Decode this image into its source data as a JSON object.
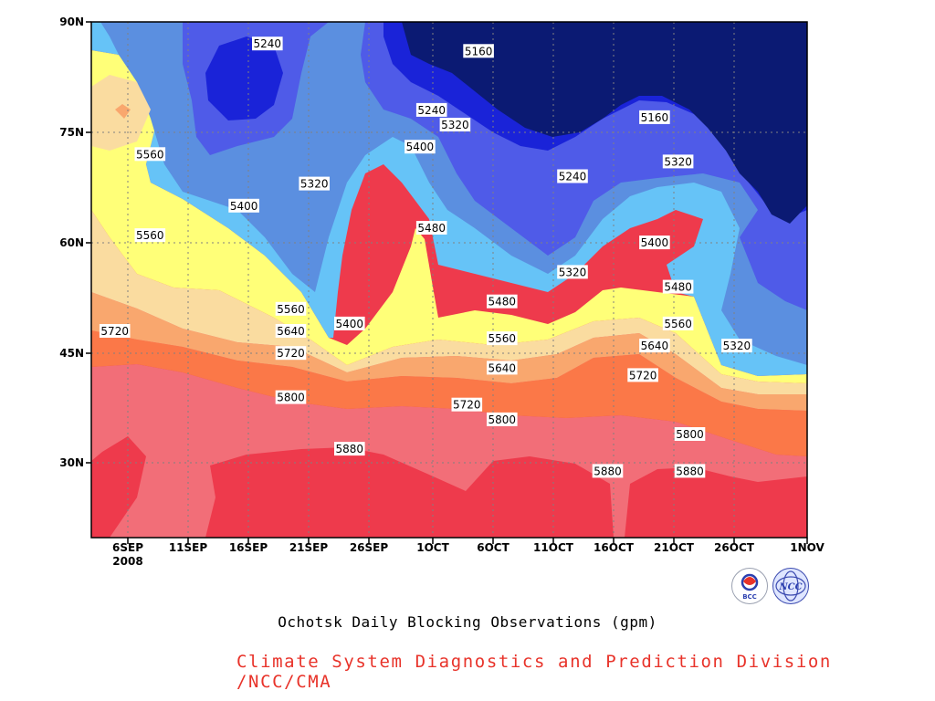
{
  "chart_data": {
    "type": "heatmap",
    "title": "Ochotsk Daily Blocking Observations (gpm)",
    "x_ticks": [
      {
        "label": "6SEP",
        "sub": "2008"
      },
      {
        "label": "11SEP"
      },
      {
        "label": "16SEP"
      },
      {
        "label": "21SEP"
      },
      {
        "label": "26SEP"
      },
      {
        "label": "1OCT"
      },
      {
        "label": "6OCT"
      },
      {
        "label": "11OCT"
      },
      {
        "label": "16OCT"
      },
      {
        "label": "21OCT"
      },
      {
        "label": "26OCT"
      },
      {
        "label": "1NOV"
      }
    ],
    "y_ticks": [
      "30N",
      "45N",
      "60N",
      "75N",
      "90N"
    ],
    "levels": [
      5160,
      5240,
      5320,
      5400,
      5480,
      5560,
      5640,
      5720,
      5800,
      5880
    ],
    "bands": [
      {
        "range": "<5160",
        "color": "#0b1a73"
      },
      {
        "range": "5160-5240",
        "color": "#1a23d8"
      },
      {
        "range": "5240-5320",
        "color": "#4f5be8"
      },
      {
        "range": "5320-5400",
        "color": "#5b8fe0"
      },
      {
        "range": "5400-5480",
        "color": "#66c3f7"
      },
      {
        "range": "5480-5560",
        "color": "#ffff78"
      },
      {
        "range": "5560-5640",
        "color": "#fadca0"
      },
      {
        "range": "5640-5720",
        "color": "#f9a76e"
      },
      {
        "range": "5720-5800",
        "color": "#fb7848"
      },
      {
        "range": "5800-5880",
        "color": "#f26e78"
      },
      {
        "range": ">5880",
        "color": "#ee3a4c"
      }
    ],
    "contour_labels": [
      {
        "value": "5160",
        "x": "4OCT",
        "y": "86N"
      },
      {
        "value": "5160",
        "x": "19OCT",
        "y": "77N"
      },
      {
        "value": "5240",
        "x": "16SEP",
        "y": "87N"
      },
      {
        "value": "5240",
        "x": "30SEP",
        "y": "78N"
      },
      {
        "value": "5240",
        "x": "12OCT",
        "y": "69N"
      },
      {
        "value": "5320",
        "x": "2OCT",
        "y": "76N"
      },
      {
        "value": "5320",
        "x": "20SEP",
        "y": "68N"
      },
      {
        "value": "5320",
        "x": "12OCT",
        "y": "56N"
      },
      {
        "value": "5320",
        "x": "21OCT",
        "y": "71N"
      },
      {
        "value": "5320",
        "x": "26OCT",
        "y": "46N"
      },
      {
        "value": "5400",
        "x": "14SEP",
        "y": "65N"
      },
      {
        "value": "5400",
        "x": "29SEP",
        "y": "73N"
      },
      {
        "value": "5400",
        "x": "23SEP",
        "y": "49N"
      },
      {
        "value": "5400",
        "x": "19OCT",
        "y": "60N"
      },
      {
        "value": "5480",
        "x": "30SEP",
        "y": "62N"
      },
      {
        "value": "5480",
        "x": "6OCT",
        "y": "52N"
      },
      {
        "value": "5480",
        "x": "21OCT",
        "y": "54N"
      },
      {
        "value": "5560",
        "x": "6SEP",
        "y": "72N"
      },
      {
        "value": "5560",
        "x": "6SEP",
        "y": "61N"
      },
      {
        "value": "5560",
        "x": "18SEP",
        "y": "51N"
      },
      {
        "value": "5560",
        "x": "6OCT",
        "y": "47N"
      },
      {
        "value": "5560",
        "x": "21OCT",
        "y": "49N"
      },
      {
        "value": "5640",
        "x": "18SEP",
        "y": "48N"
      },
      {
        "value": "5640",
        "x": "6OCT",
        "y": "43N"
      },
      {
        "value": "5640",
        "x": "19OCT",
        "y": "46N"
      },
      {
        "value": "5720",
        "x": "3SEP",
        "y": "48N"
      },
      {
        "value": "5720",
        "x": "18SEP",
        "y": "45N"
      },
      {
        "value": "5720",
        "x": "3OCT",
        "y": "38N"
      },
      {
        "value": "5720",
        "x": "18OCT",
        "y": "42N"
      },
      {
        "value": "5800",
        "x": "18SEP",
        "y": "39N"
      },
      {
        "value": "5800",
        "x": "6OCT",
        "y": "36N"
      },
      {
        "value": "5800",
        "x": "22OCT",
        "y": "34N"
      },
      {
        "value": "5880",
        "x": "23SEP",
        "y": "32N"
      },
      {
        "value": "5880",
        "x": "15OCT",
        "y": "29N"
      },
      {
        "value": "5880",
        "x": "22OCT",
        "y": "29N"
      }
    ]
  },
  "credit": "Climate System Diagnostics and Prediction Division /NCC/CMA",
  "logos": {
    "left": "BCC",
    "right": "NCC"
  }
}
